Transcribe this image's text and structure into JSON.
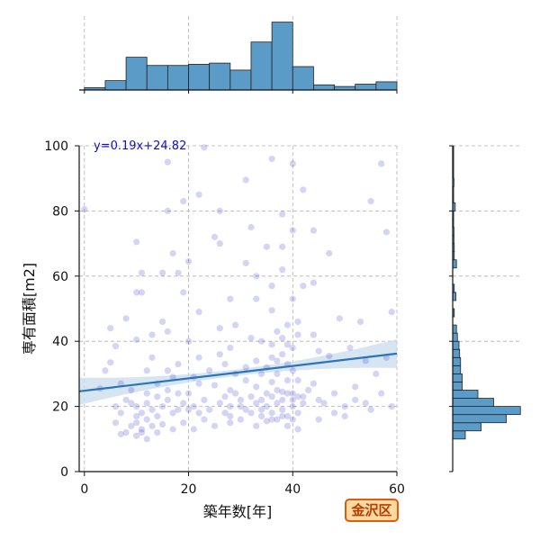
{
  "colors": {
    "hist": "#5b9bc8",
    "hist_edge": "#222222",
    "point": "#2a2ac8",
    "line": "#2a74b8",
    "band": "#c8dcec",
    "grid": "#b0b0b0",
    "badge_bg": "#ffd9a0",
    "badge_border": "#e05a10"
  },
  "badge": {
    "text": "金沢区"
  },
  "chart_data": {
    "type": "scatter",
    "title": "",
    "xlabel": "築年数[年]",
    "ylabel": "専有面積[m2]",
    "xlim": [
      -1,
      60
    ],
    "ylim": [
      0,
      100
    ],
    "xticks": [
      "0",
      "20",
      "40",
      "60"
    ],
    "yticks": [
      "0",
      "20",
      "40",
      "60",
      "80",
      "100"
    ],
    "grid": true,
    "equation": "y=0.19x+24.82",
    "regression": {
      "slope": 0.19,
      "intercept": 24.82,
      "x_range": [
        -1,
        60
      ]
    },
    "points": [
      [
        0,
        80.5
      ],
      [
        16,
        95
      ],
      [
        23,
        99.5
      ],
      [
        31,
        89.5
      ],
      [
        36,
        96
      ],
      [
        40,
        94.5
      ],
      [
        42,
        86.5
      ],
      [
        55,
        83
      ],
      [
        57,
        94.5
      ],
      [
        22,
        85
      ],
      [
        26,
        80
      ],
      [
        19,
        83
      ],
      [
        38,
        79
      ],
      [
        16,
        80
      ],
      [
        10,
        70.5
      ],
      [
        17,
        67
      ],
      [
        20,
        64.5
      ],
      [
        26,
        70
      ],
      [
        25,
        72
      ],
      [
        32,
        75
      ],
      [
        35,
        69
      ],
      [
        38,
        69
      ],
      [
        40,
        74
      ],
      [
        44,
        74
      ],
      [
        47,
        67
      ],
      [
        58,
        73.5
      ],
      [
        31,
        64
      ],
      [
        33,
        60
      ],
      [
        38,
        62
      ],
      [
        18,
        61
      ],
      [
        15,
        61
      ],
      [
        11,
        61
      ],
      [
        36,
        57
      ],
      [
        42,
        57
      ],
      [
        44,
        58
      ],
      [
        40,
        53
      ],
      [
        10,
        55
      ],
      [
        11,
        55
      ],
      [
        19,
        55
      ],
      [
        28,
        53
      ],
      [
        33,
        53
      ],
      [
        36,
        49.5
      ],
      [
        39,
        45
      ],
      [
        41,
        46
      ],
      [
        44,
        42
      ],
      [
        49,
        47
      ],
      [
        53,
        46
      ],
      [
        59,
        49
      ],
      [
        22,
        49
      ],
      [
        16,
        43
      ],
      [
        15,
        46
      ],
      [
        8,
        47
      ],
      [
        5,
        44
      ],
      [
        6,
        38.5
      ],
      [
        10,
        40.5
      ],
      [
        13,
        42
      ],
      [
        20,
        40
      ],
      [
        26,
        44
      ],
      [
        29,
        45
      ],
      [
        32,
        41
      ],
      [
        34,
        40
      ],
      [
        37,
        43
      ],
      [
        39,
        39
      ],
      [
        41,
        42
      ],
      [
        45,
        37
      ],
      [
        47,
        35.5
      ],
      [
        51,
        38
      ],
      [
        54,
        34
      ],
      [
        56,
        30
      ],
      [
        58,
        35
      ],
      [
        4,
        31
      ],
      [
        5,
        33.5
      ],
      [
        3,
        25.5
      ],
      [
        7,
        27
      ],
      [
        9,
        25
      ],
      [
        12,
        31
      ],
      [
        14,
        27
      ],
      [
        17,
        29
      ],
      [
        20,
        24
      ],
      [
        22,
        27
      ],
      [
        25,
        26.5
      ],
      [
        28,
        25
      ],
      [
        31,
        28
      ],
      [
        33,
        26
      ],
      [
        36,
        27.5
      ],
      [
        38,
        24.5
      ],
      [
        41,
        28
      ],
      [
        43,
        25
      ],
      [
        45,
        22
      ],
      [
        48,
        24
      ],
      [
        50,
        20
      ],
      [
        52,
        22
      ],
      [
        55,
        19
      ],
      [
        57,
        24
      ],
      [
        59,
        20
      ],
      [
        8,
        22
      ],
      [
        9,
        21
      ],
      [
        10,
        20
      ],
      [
        11,
        18
      ],
      [
        12,
        21
      ],
      [
        13,
        19
      ],
      [
        14,
        17
      ],
      [
        15,
        20
      ],
      [
        16,
        22
      ],
      [
        17,
        18
      ],
      [
        18,
        19
      ],
      [
        19,
        21
      ],
      [
        21,
        20
      ],
      [
        22,
        18
      ],
      [
        23,
        22
      ],
      [
        24,
        19
      ],
      [
        26,
        21
      ],
      [
        27,
        18
      ],
      [
        28,
        20
      ],
      [
        30,
        22
      ],
      [
        31,
        19
      ],
      [
        33,
        21
      ],
      [
        34,
        17
      ],
      [
        35,
        20
      ],
      [
        36,
        18
      ],
      [
        37,
        21
      ],
      [
        38,
        19
      ],
      [
        39,
        17
      ],
      [
        40,
        20
      ],
      [
        41,
        18
      ],
      [
        42,
        21
      ],
      [
        34,
        22
      ],
      [
        36,
        23
      ],
      [
        38,
        22
      ],
      [
        39,
        24
      ],
      [
        35,
        15.5
      ],
      [
        37,
        16
      ],
      [
        39,
        14
      ],
      [
        40,
        16
      ],
      [
        41,
        13
      ],
      [
        33,
        14
      ],
      [
        30,
        16
      ],
      [
        28,
        15
      ],
      [
        25,
        14
      ],
      [
        23,
        16
      ],
      [
        21,
        13
      ],
      [
        19,
        15
      ],
      [
        17,
        13
      ],
      [
        15,
        14.5
      ],
      [
        14,
        12
      ],
      [
        13,
        14
      ],
      [
        12,
        16
      ],
      [
        11,
        13
      ],
      [
        10,
        11
      ],
      [
        9,
        14
      ],
      [
        8,
        12
      ],
      [
        7,
        11.5
      ],
      [
        6,
        15
      ],
      [
        7,
        18
      ],
      [
        10,
        17
      ],
      [
        12,
        24
      ],
      [
        14,
        23
      ],
      [
        16,
        25
      ],
      [
        18,
        24
      ],
      [
        20,
        19
      ],
      [
        27,
        23
      ],
      [
        29,
        24
      ],
      [
        32,
        23
      ],
      [
        35,
        24
      ],
      [
        37,
        25
      ],
      [
        40,
        24
      ],
      [
        42,
        23
      ],
      [
        35,
        32
      ],
      [
        36,
        35
      ],
      [
        37,
        34
      ],
      [
        38,
        36
      ],
      [
        39,
        33
      ],
      [
        40,
        31
      ],
      [
        34,
        30
      ],
      [
        33,
        34
      ],
      [
        31,
        32
      ],
      [
        29,
        30
      ],
      [
        27,
        33
      ],
      [
        24,
        31
      ],
      [
        21,
        29
      ],
      [
        18,
        33
      ],
      [
        16,
        31
      ],
      [
        36,
        39
      ],
      [
        38,
        41
      ],
      [
        40,
        38
      ],
      [
        37,
        30
      ],
      [
        39,
        28
      ],
      [
        26,
        36
      ],
      [
        28,
        38
      ],
      [
        22,
        35
      ],
      [
        13,
        35
      ],
      [
        48,
        18
      ],
      [
        46,
        21
      ],
      [
        45,
        16
      ],
      [
        50,
        17
      ],
      [
        52,
        26
      ],
      [
        54,
        21
      ],
      [
        44,
        27
      ],
      [
        11,
        12
      ],
      [
        10,
        15
      ],
      [
        12,
        10
      ],
      [
        6,
        20
      ],
      [
        32,
        18
      ],
      [
        34,
        19
      ],
      [
        36,
        16
      ],
      [
        38,
        17
      ],
      [
        40,
        22
      ],
      [
        41,
        23
      ],
      [
        30,
        20
      ],
      [
        28,
        17
      ]
    ],
    "top_hist": {
      "bin_edges": [
        0,
        4,
        8,
        12,
        16,
        20,
        24,
        28,
        32,
        36,
        40,
        44,
        48,
        52,
        56,
        60
      ],
      "counts": [
        1,
        4,
        14,
        10.5,
        10.5,
        11,
        11.5,
        8.5,
        20.5,
        29,
        10,
        2.2,
        1.5,
        2.5,
        3.5
      ]
    },
    "right_hist": {
      "bin_edges": [
        10,
        12.5,
        15,
        17.5,
        20,
        22.5,
        25,
        27.5,
        30,
        32.5,
        35,
        37.5,
        40,
        42.5,
        45,
        47.5,
        50,
        52.5,
        55,
        57.5,
        60,
        62.5,
        65,
        67.5,
        70,
        72.5,
        75,
        77.5,
        80,
        82.5,
        85,
        87.5,
        90,
        92.5,
        95,
        97.5,
        100
      ],
      "counts": [
        4,
        9,
        17,
        21.5,
        13,
        8,
        3,
        3,
        2.5,
        2.5,
        2.2,
        2,
        1.5,
        1.2,
        0,
        0.5,
        0,
        1,
        0.5,
        0,
        0,
        1.2,
        0.5,
        0.5,
        0.4,
        0.4,
        0.3,
        0.3,
        0.8,
        0.3,
        0.3,
        0.4,
        0.3,
        0.3,
        0.3,
        0.3
      ]
    }
  }
}
